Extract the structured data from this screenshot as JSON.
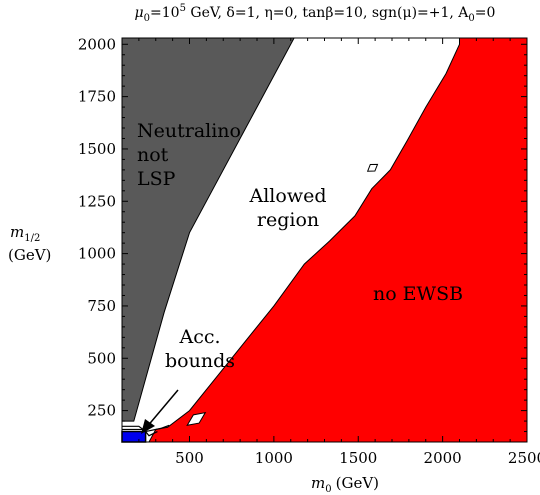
{
  "chart_data": {
    "type": "area",
    "title": "μ0=10^5 GeV, δ=1, η=0, tanβ=10, sgn(μ)=+1, A0=0",
    "title_parts": {
      "mu0": "μ",
      "mu0_sub": "0",
      "mu0_val": "=10",
      "mu0_exp": "5",
      "rest": " GeV, δ=1, η=0, tanβ=10, sgn(μ)=+1, A",
      "a0_sub": "0",
      "a0_val": "=0"
    },
    "xlabel": {
      "sym": "m",
      "sub": "0",
      "unit": "(GeV)"
    },
    "ylabel": {
      "sym": "m",
      "sub": "1/2",
      "unit": "(GeV)"
    },
    "xlim": [
      100,
      2500
    ],
    "ylim": [
      100,
      2030
    ],
    "xticks": [
      500,
      1000,
      1500,
      2000,
      2500
    ],
    "yticks": [
      250,
      500,
      750,
      1000,
      1250,
      1500,
      1750,
      2000
    ],
    "regions": [
      {
        "name": "Neutralino not LSP",
        "label_lines": [
          "Neutralino",
          "not",
          "LSP"
        ],
        "color": "#595959",
        "points": [
          [
            100,
            2030
          ],
          [
            1120,
            2030
          ],
          [
            500,
            1100
          ],
          [
            350,
            720
          ],
          [
            170,
            200
          ],
          [
            100,
            200
          ]
        ]
      },
      {
        "name": "no EWSB",
        "label_lines": [
          "no EWSB"
        ],
        "color": "#ff0000",
        "points": [
          [
            2500,
            2030
          ],
          [
            2500,
            100
          ],
          [
            260,
            100
          ],
          [
            300,
            160
          ],
          [
            370,
            170
          ],
          [
            500,
            250
          ],
          [
            700,
            450
          ],
          [
            1000,
            750
          ],
          [
            1180,
            950
          ],
          [
            1330,
            1060
          ],
          [
            1480,
            1180
          ],
          [
            1580,
            1310
          ],
          [
            1690,
            1400
          ],
          [
            1790,
            1540
          ],
          [
            1900,
            1700
          ],
          [
            2020,
            1860
          ],
          [
            2100,
            2000
          ],
          [
            2100,
            2030
          ]
        ]
      },
      {
        "name": "Acc. bounds",
        "label_lines": [
          "Acc.",
          "bounds"
        ],
        "color": "#0000ee",
        "points": [
          [
            100,
            100
          ],
          [
            240,
            100
          ],
          [
            240,
            150
          ],
          [
            100,
            150
          ]
        ]
      }
    ],
    "annotations": [
      {
        "text_lines": [
          "Allowed",
          "region"
        ]
      }
    ],
    "colors": {
      "gray": "#595959",
      "red": "#ff0000",
      "blue": "#0000ee",
      "white": "#ffffff",
      "frame": "#000000"
    }
  }
}
